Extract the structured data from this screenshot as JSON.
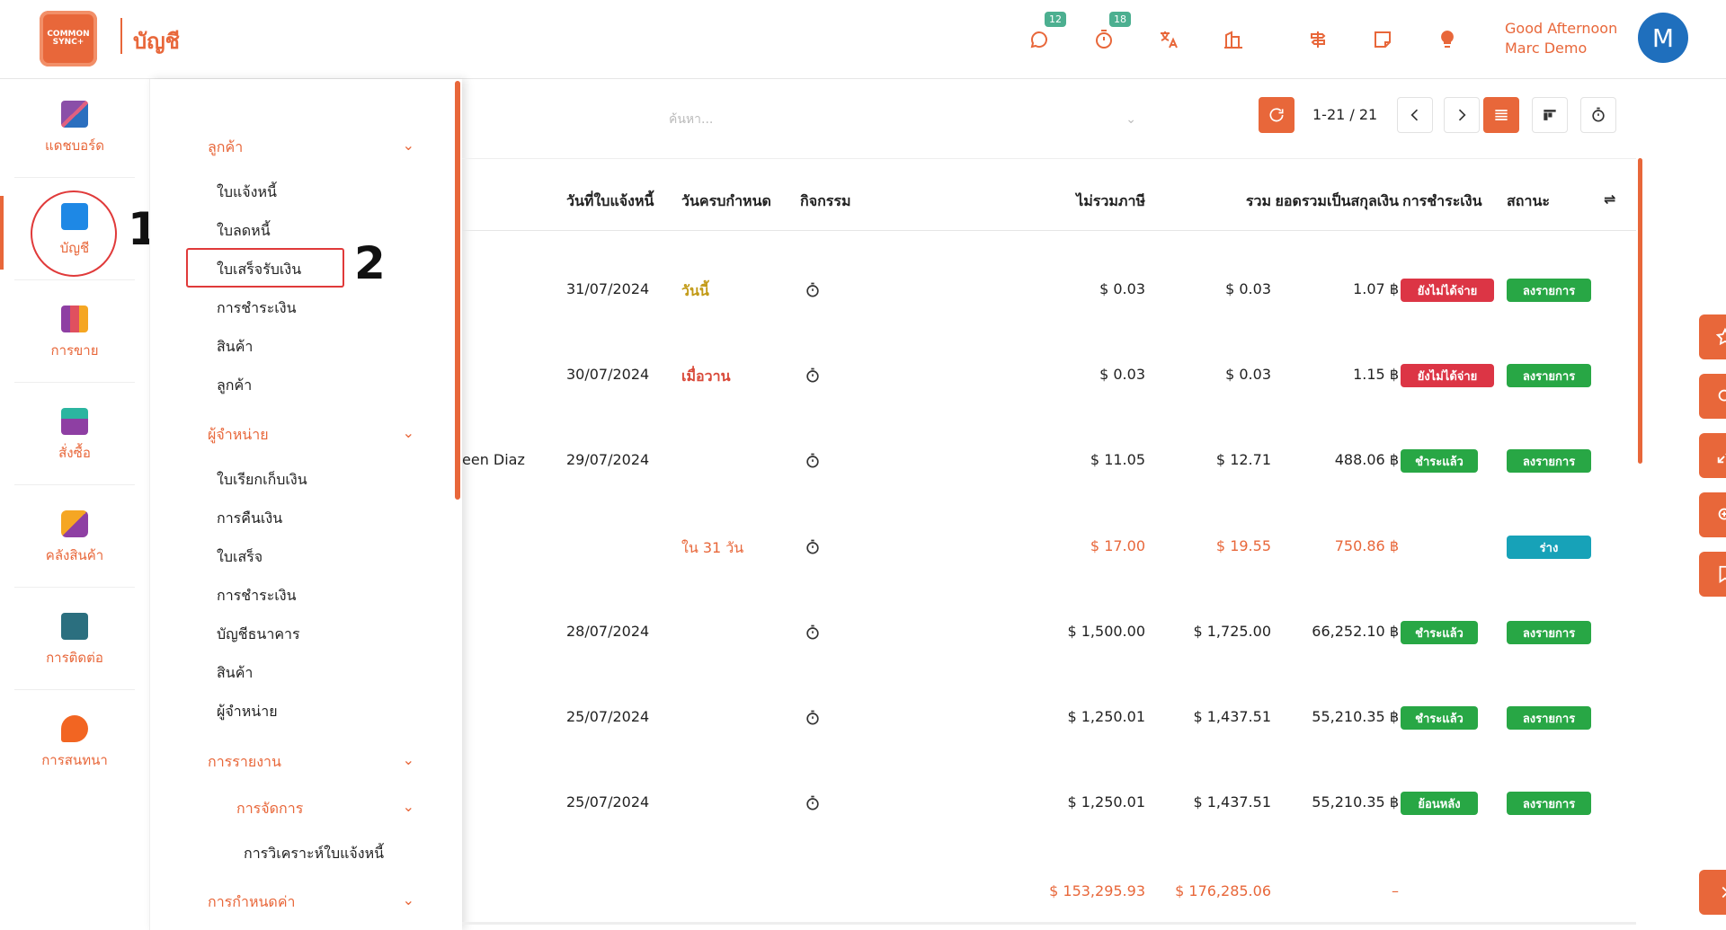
{
  "header": {
    "logo_text": "COMMON SYNC+",
    "title": "บัญชี",
    "badges": {
      "messages": "12",
      "activities": "18"
    },
    "greeting": "Good Afternoon",
    "user_name": "Marc Demo",
    "avatar_letter": "M"
  },
  "left_nav": [
    {
      "label": "แดชบอร์ด",
      "icon": "dashboard-icon"
    },
    {
      "label": "บัญชี",
      "icon": "accounting-icon"
    },
    {
      "label": "การขาย",
      "icon": "sales-icon"
    },
    {
      "label": "สั่งซื้อ",
      "icon": "purchase-icon"
    },
    {
      "label": "คลังสินค้า",
      "icon": "inventory-icon"
    },
    {
      "label": "การติดต่อ",
      "icon": "contacts-icon"
    },
    {
      "label": "การสนทนา",
      "icon": "discuss-icon"
    }
  ],
  "callouts": {
    "one": "1",
    "two": "2"
  },
  "submenu": {
    "customers_head": "ลูกค้า",
    "customers_items": [
      "ใบแจ้งหนี้",
      "ใบลดหนี้",
      "ใบเสร็จรับเงิน",
      "การชำระเงิน",
      "สินค้า",
      "ลูกค้า"
    ],
    "vendors_head": "ผู้จำหน่าย",
    "vendors_items": [
      "ใบเรียกเก็บเงิน",
      "การคืนเงิน",
      "ใบเสร็จ",
      "การชำระเงิน",
      "บัญชีธนาคาร",
      "สินค้า",
      "ผู้จำหน่าย"
    ],
    "reporting_head": "การรายงาน",
    "management_head": "การจัดการ",
    "invoice_analysis": "การวิเคราะห์ใบแจ้งหนี้",
    "config_head": "การกำหนดค่า"
  },
  "toolbar": {
    "search_placeholder": "ค้นหา...",
    "pager": "1-21 / 21"
  },
  "table": {
    "headers": {
      "invoice_date": "วันที่ใบแจ้งหนี้",
      "due_date": "วันครบกำหนด",
      "activity": "กิจกรรม",
      "untaxed": "ไม่รวมภาษี",
      "total": "รวม",
      "total_currency": "ยอดรวมเป็นสกุลเงิน",
      "payment": "การชำระเงิน",
      "status": "สถานะ"
    },
    "rows": [
      {
        "partner": "",
        "date": "31/07/2024",
        "due": "วันนี้",
        "due_style": "gold",
        "untaxed": "$ 0.03",
        "total": "$ 0.03",
        "total_cur": "1.07 ฿",
        "payment": "ยังไม่ได้จ่าย",
        "payment_color": "red",
        "status": "ลงรายการ",
        "status_color": "green",
        "orange": false
      },
      {
        "partner": "",
        "date": "30/07/2024",
        "due": "เมื่อวาน",
        "due_style": "red",
        "untaxed": "$ 0.03",
        "total": "$ 0.03",
        "total_cur": "1.15 ฿",
        "payment": "ยังไม่ได้จ่าย",
        "payment_color": "red",
        "status": "ลงรายการ",
        "status_color": "green",
        "orange": false
      },
      {
        "partner": "een Diaz",
        "date": "29/07/2024",
        "due": "",
        "due_style": "",
        "untaxed": "$ 11.05",
        "total": "$ 12.71",
        "total_cur": "488.06 ฿",
        "payment": "ชำระแล้ว",
        "payment_color": "green",
        "status": "ลงรายการ",
        "status_color": "green",
        "orange": false
      },
      {
        "partner": "",
        "date": "",
        "due": "ใน 31 วัน",
        "due_style": "orange",
        "untaxed": "$ 17.00",
        "total": "$ 19.55",
        "total_cur": "750.86 ฿",
        "payment": "",
        "payment_color": "",
        "status": "ร่าง",
        "status_color": "teal",
        "orange": true
      },
      {
        "partner": "",
        "date": "28/07/2024",
        "due": "",
        "due_style": "",
        "untaxed": "$ 1,500.00",
        "total": "$ 1,725.00",
        "total_cur": "66,252.10 ฿",
        "payment": "ชำระแล้ว",
        "payment_color": "green",
        "status": "ลงรายการ",
        "status_color": "green",
        "orange": false
      },
      {
        "partner": "",
        "date": "25/07/2024",
        "due": "",
        "due_style": "",
        "untaxed": "$ 1,250.01",
        "total": "$ 1,437.51",
        "total_cur": "55,210.35 ฿",
        "payment": "ชำระแล้ว",
        "payment_color": "green",
        "status": "ลงรายการ",
        "status_color": "green",
        "orange": false
      },
      {
        "partner": "",
        "date": "25/07/2024",
        "due": "",
        "due_style": "",
        "untaxed": "$ 1,250.01",
        "total": "$ 1,437.51",
        "total_cur": "55,210.35 ฿",
        "payment": "ย้อนหลัง",
        "payment_color": "green",
        "status": "ลงรายการ",
        "status_color": "green",
        "orange": false
      }
    ],
    "totals": {
      "untaxed": "$ 153,295.93",
      "total": "$ 176,285.06",
      "total_cur": "–"
    }
  },
  "colors": {
    "accent": "#e8673a",
    "red": "#dc3545",
    "green": "#28a745",
    "teal": "#17a2b8",
    "avatar": "#1f6fbd"
  },
  "right_tools": [
    "star-icon",
    "search-icon",
    "expand-icon",
    "zoom-icon",
    "bookmark-icon"
  ]
}
